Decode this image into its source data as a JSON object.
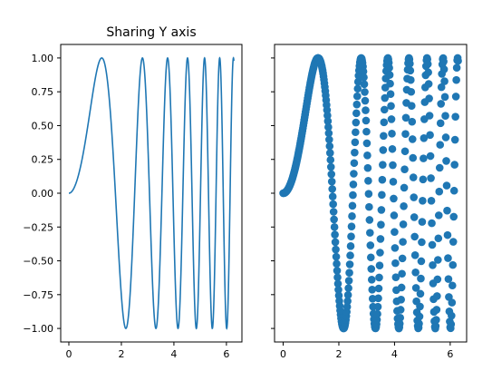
{
  "chart_data": [
    {
      "type": "line",
      "title": "Sharing Y axis",
      "function": "y = sin(x^2)",
      "x_range": [
        0,
        6.2832
      ],
      "xlim": [
        -0.31,
        6.59
      ],
      "ylim": [
        -1.1,
        1.1
      ],
      "x_ticks": [
        0,
        2,
        4,
        6
      ],
      "x_tick_labels": [
        "0",
        "2",
        "4",
        "6"
      ],
      "y_ticks": [
        1.0,
        0.75,
        0.5,
        0.25,
        0.0,
        -0.25,
        -0.5,
        -0.75,
        -1.0
      ],
      "y_tick_labels": [
        "1.00",
        "0.75",
        "0.50",
        "0.25",
        "0.00",
        "−0.25",
        "−0.50",
        "−0.75",
        "−1.00"
      ],
      "grid": false,
      "color": "#1f77b4"
    },
    {
      "type": "scatter",
      "title": "",
      "function": "y = sin(x^2)",
      "x_range": [
        0,
        6.2832
      ],
      "num_points": 400,
      "xlim": [
        -0.31,
        6.59
      ],
      "ylim": [
        -1.1,
        1.1
      ],
      "shares_y_axis": true,
      "x_ticks": [
        0,
        2,
        4,
        6
      ],
      "x_tick_labels": [
        "0",
        "2",
        "4",
        "6"
      ],
      "y_ticks": [
        1.0,
        0.75,
        0.5,
        0.25,
        0.0,
        -0.25,
        -0.5,
        -0.75,
        -1.0
      ],
      "y_tick_labels": [],
      "grid": false,
      "color": "#1f77b4"
    }
  ]
}
